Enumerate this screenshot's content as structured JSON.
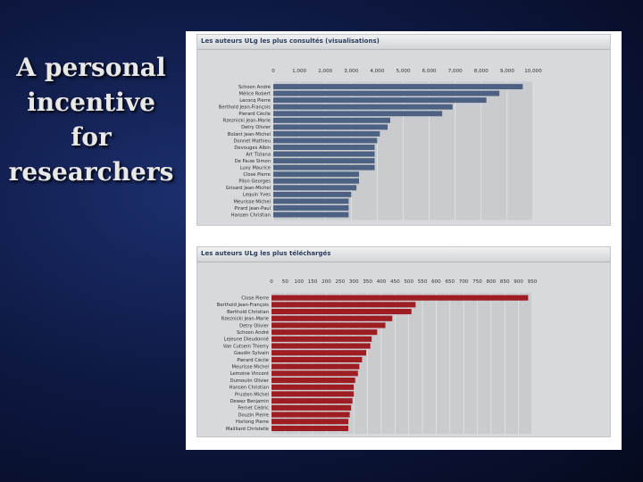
{
  "slide": {
    "title": "A personal incentive for researchers"
  },
  "chart_data": [
    {
      "type": "bar",
      "orientation": "horizontal",
      "title": "Les auteurs ULg les plus consultés (visualisations)",
      "xlim": [
        0,
        10000
      ],
      "xticks": [
        "0",
        "1,000",
        "2,000",
        "3,000",
        "4,000",
        "5,000",
        "6,000",
        "7,000",
        "8,000",
        "9,000",
        "10,000"
      ],
      "bar_color": "#4d6283",
      "grid": true,
      "categories": [
        "Schoon André",
        "Mélice Robert",
        "Lecocq Pierre",
        "Berthold Jean-François",
        "Pierard Cécile",
        "Rzeznicki Jean-Marie",
        "Detry Olivier",
        "Bolant Jean-Michel",
        "Donnet Mathieu",
        "Devouges Albin",
        "Art Tiziana",
        "De Pauw Simon",
        "Luxy Maurice",
        "Close Pierre",
        "Pilon Georges",
        "Grisard Jean-Michel",
        "Lequin Yves",
        "Meurisse Michel",
        "Pirard Jean-Paul",
        "Hansen Christian"
      ],
      "values": [
        9600,
        8700,
        8200,
        6900,
        6500,
        4500,
        4400,
        4100,
        4000,
        3900,
        3900,
        3900,
        3900,
        3300,
        3300,
        3200,
        3000,
        2900,
        2900,
        2900
      ]
    },
    {
      "type": "bar",
      "orientation": "horizontal",
      "title": "Les auteurs ULg les plus téléchargés",
      "xlim": [
        0,
        950
      ],
      "xticks": [
        "0",
        "50",
        "100",
        "150",
        "200",
        "250",
        "300",
        "350",
        "400",
        "450",
        "500",
        "550",
        "600",
        "650",
        "700",
        "750",
        "800",
        "850",
        "900",
        "950"
      ],
      "bar_color": "#9e1d22",
      "grid": true,
      "categories": [
        "Close Pierre",
        "Berthold Jean-François",
        "Berthold Christian",
        "Rzeznicki Jean-Marie",
        "Detry Olivier",
        "Schoon André",
        "Lejeune Dieudonné",
        "Van Cutsem Thierry",
        "Gaudin Sylvain",
        "Pierard Cécile",
        "Meurisse Michel",
        "Lemoine Vincent",
        "Dumoulin Olivier",
        "Hansen Christian",
        "Prusten Michel",
        "Dewez Benjamin",
        "Fernet Cédric",
        "Douzin Pierre",
        "Horlong Pierre",
        "Mailliard Christelle"
      ],
      "values": [
        935,
        525,
        510,
        440,
        415,
        385,
        365,
        360,
        345,
        330,
        320,
        315,
        305,
        300,
        300,
        295,
        290,
        285,
        280,
        280
      ]
    }
  ]
}
